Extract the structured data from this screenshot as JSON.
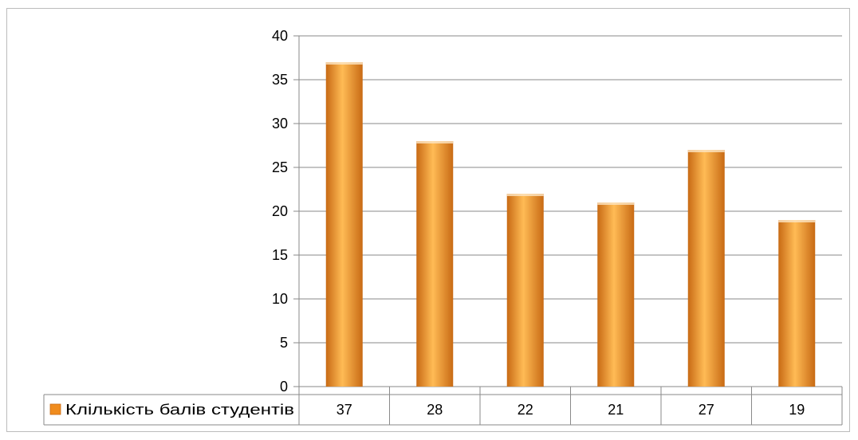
{
  "colors": {
    "bar_light": "#ffbb55",
    "bar_mid": "#f7952f",
    "bar_dark": "#c86a14",
    "bar_top": "#fde6c4",
    "grid": "#8a8a8a",
    "axis": "#8a8a8a",
    "table_border": "#8a8a8a",
    "legend_key": "#f08c1e"
  },
  "legend_key_icon": "orange-square-icon",
  "chart_data": {
    "type": "bar",
    "categories": [
      "",
      "",
      "",
      "",
      "",
      ""
    ],
    "series": [
      {
        "name": "Клількість балів студентів",
        "values": [
          37,
          28,
          22,
          21,
          27,
          19
        ]
      }
    ],
    "ylim": [
      0,
      40
    ],
    "yticks": [
      0,
      5,
      10,
      15,
      20,
      25,
      30,
      35,
      40
    ],
    "ytick_labels": [
      "0",
      "5",
      "10",
      "15",
      "20",
      "25",
      "30",
      "35",
      "40"
    ],
    "grid": true,
    "legend": "data-table",
    "data_table": {
      "row_label": "Клількість балів студентів",
      "values": [
        "37",
        "28",
        "22",
        "21",
        "27",
        "19"
      ]
    }
  }
}
